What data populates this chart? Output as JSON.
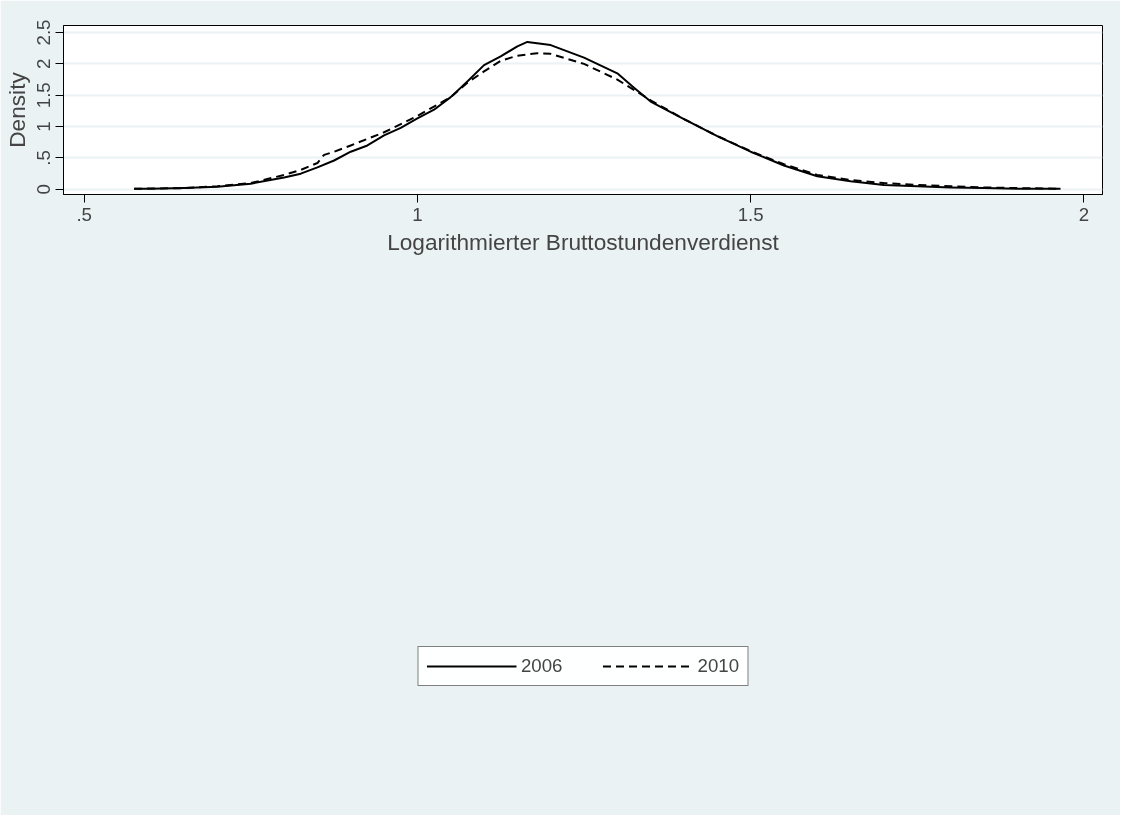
{
  "chart_data": {
    "type": "line",
    "xlabel": "Logarithmierter Bruttostundenverdienst",
    "ylabel": "Density",
    "xlim": [
      0.469,
      2.028
    ],
    "ylim": [
      -0.082,
      2.612
    ],
    "xticks": [
      {
        "value": 0.5,
        "label": ".5"
      },
      1,
      {
        "value": 1.5,
        "label": "1.5"
      },
      2
    ],
    "yticks": [
      0,
      {
        "value": 0.5,
        "label": ".5"
      },
      1,
      {
        "value": 1.5,
        "label": "1.5"
      },
      2,
      {
        "value": 2.5,
        "label": "2.5"
      }
    ],
    "grid": "y",
    "legend": "bottom",
    "marker": "none",
    "series": [
      {
        "name": "2006",
        "color": "#000000",
        "line_style": "solid",
        "x": [
          0.575,
          0.6,
          0.65,
          0.7,
          0.75,
          0.8,
          0.825,
          0.85,
          0.875,
          0.9,
          0.925,
          0.95,
          0.975,
          1.0,
          1.025,
          1.05,
          1.075,
          1.1,
          1.125,
          1.15,
          1.165,
          1.2,
          1.25,
          1.3,
          1.325,
          1.35,
          1.4,
          1.45,
          1.5,
          1.55,
          1.6,
          1.65,
          1.7,
          1.75,
          1.8,
          1.85,
          1.9,
          1.965
        ],
        "values": [
          0.01,
          0.01,
          0.02,
          0.04,
          0.09,
          0.19,
          0.25,
          0.35,
          0.46,
          0.6,
          0.7,
          0.86,
          0.98,
          1.13,
          1.27,
          1.47,
          1.72,
          1.98,
          2.12,
          2.28,
          2.35,
          2.3,
          2.1,
          1.85,
          1.62,
          1.4,
          1.12,
          0.85,
          0.6,
          0.38,
          0.21,
          0.13,
          0.07,
          0.05,
          0.03,
          0.02,
          0.01,
          0.01
        ]
      },
      {
        "name": "2010",
        "color": "#000000",
        "line_style": "dashed",
        "x": [
          0.575,
          0.65,
          0.7,
          0.75,
          0.8,
          0.825,
          0.85,
          0.86,
          0.875,
          0.9,
          0.95,
          1.0,
          1.05,
          1.075,
          1.1,
          1.125,
          1.15,
          1.18,
          1.2,
          1.25,
          1.3,
          1.35,
          1.4,
          1.45,
          1.5,
          1.55,
          1.6,
          1.65,
          1.7,
          1.75,
          1.8,
          1.85,
          1.9,
          1.965
        ],
        "values": [
          0.01,
          0.02,
          0.05,
          0.1,
          0.23,
          0.31,
          0.42,
          0.55,
          0.6,
          0.7,
          0.91,
          1.17,
          1.47,
          1.7,
          1.88,
          2.05,
          2.13,
          2.17,
          2.16,
          2.0,
          1.75,
          1.42,
          1.12,
          0.85,
          0.61,
          0.4,
          0.23,
          0.15,
          0.1,
          0.07,
          0.05,
          0.03,
          0.02,
          0.01
        ]
      }
    ]
  }
}
